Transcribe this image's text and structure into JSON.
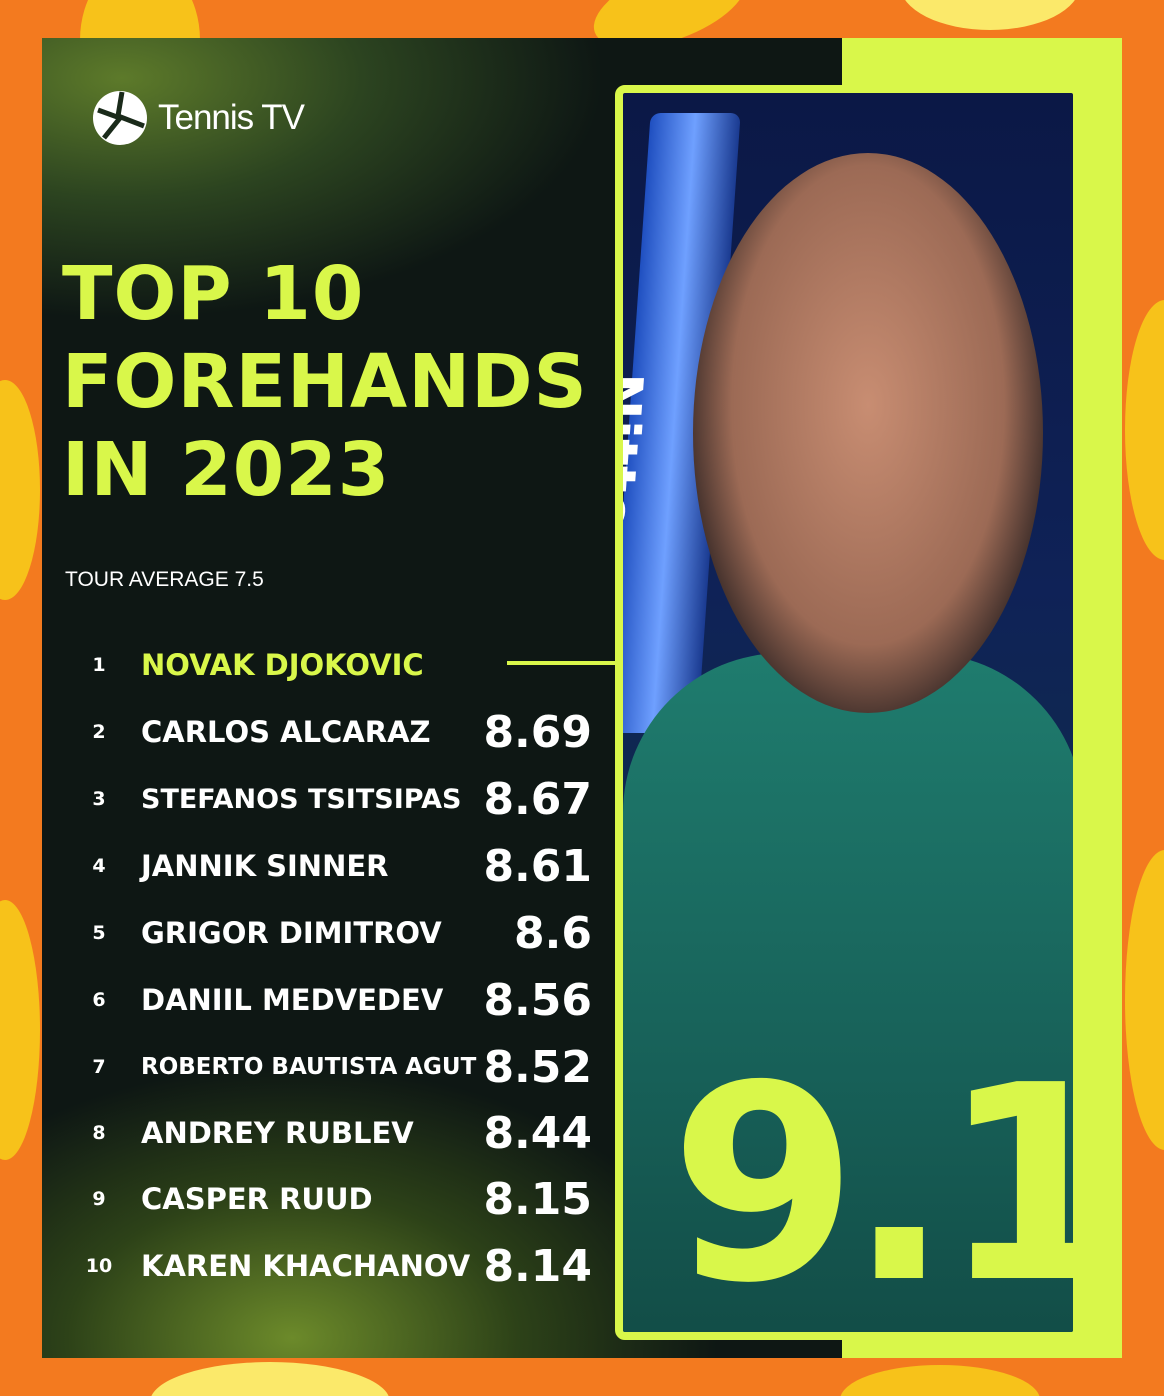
{
  "brand": {
    "name": "Tennis TV"
  },
  "title_lines": [
    "TOP 10",
    "FOREHANDS",
    "IN 2023"
  ],
  "tour_average": "TOUR AVERAGE 7.5",
  "rankings": [
    {
      "rank": "1",
      "name": "NOVAK DJOKOVIC",
      "score": ""
    },
    {
      "rank": "2",
      "name": "CARLOS ALCARAZ",
      "score": "8.69"
    },
    {
      "rank": "3",
      "name": "STEFANOS TSITSIPAS",
      "score": "8.67"
    },
    {
      "rank": "4",
      "name": "JANNIK SINNER",
      "score": "8.61"
    },
    {
      "rank": "5",
      "name": "GRIGOR DIMITROV",
      "score": "8.6"
    },
    {
      "rank": "6",
      "name": "DANIIL MEDVEDEV",
      "score": "8.56"
    },
    {
      "rank": "7",
      "name": "ROBERTO BAUTISTA AGUT",
      "score": "8.52"
    },
    {
      "rank": "8",
      "name": "ANDREY RUBLEV",
      "score": "8.44"
    },
    {
      "rank": "9",
      "name": "CASPER RUUD",
      "score": "8.15"
    },
    {
      "rank": "10",
      "name": "KAREN KHACHANOV",
      "score": "8.14"
    }
  ],
  "featured": {
    "score": "9.1",
    "photo_text": "Nitto"
  },
  "colors": {
    "accent": "#d9f74a",
    "background": "#f37a1f",
    "blob": "#f7c21a",
    "panel": "#0e1714"
  }
}
